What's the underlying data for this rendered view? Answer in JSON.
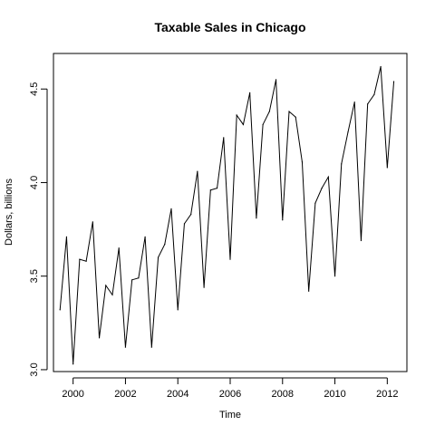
{
  "chart_data": {
    "type": "line",
    "title": "Taxable Sales in Chicago",
    "xlabel": "Time",
    "ylabel": "Dollars, billions",
    "xlim": [
      1999.25,
      2012.75
    ],
    "ylim": [
      2.99,
      4.69
    ],
    "xticks": [
      2000,
      2002,
      2004,
      2006,
      2008,
      2010,
      2012
    ],
    "xtick_labels": [
      "2000",
      "2002",
      "2004",
      "2006",
      "2008",
      "2010",
      "2012"
    ],
    "yticks": [
      3.0,
      3.5,
      4.0,
      4.5
    ],
    "ytick_labels": [
      "3.0",
      "3.5",
      "4.0",
      "4.5"
    ],
    "grid": false,
    "legend": "none",
    "x": [
      1999.5,
      1999.75,
      2000.0,
      2000.25,
      2000.5,
      2000.75,
      2001.0,
      2001.25,
      2001.5,
      2001.75,
      2002.0,
      2002.25,
      2002.5,
      2002.75,
      2003.0,
      2003.25,
      2003.5,
      2003.75,
      2004.0,
      2004.25,
      2004.5,
      2004.75,
      2005.0,
      2005.25,
      2005.5,
      2005.75,
      2006.0,
      2006.25,
      2006.5,
      2006.75,
      2007.0,
      2007.25,
      2007.5,
      2007.75,
      2008.0,
      2008.25,
      2008.5,
      2008.75,
      2009.0,
      2009.25,
      2009.5,
      2009.75,
      2010.0,
      2010.25,
      2010.5,
      2010.75,
      2011.0,
      2011.25,
      2011.5,
      2011.75,
      2012.0,
      2012.25
    ],
    "series": [
      {
        "values": [
          3.32,
          3.71,
          3.03,
          3.59,
          3.58,
          3.79,
          3.17,
          3.45,
          3.4,
          3.65,
          3.12,
          3.48,
          3.49,
          3.71,
          3.12,
          3.6,
          3.67,
          3.86,
          3.32,
          3.78,
          3.83,
          4.06,
          3.44,
          3.96,
          3.97,
          4.24,
          3.59,
          4.36,
          4.31,
          4.48,
          3.81,
          4.31,
          4.38,
          4.55,
          3.8,
          4.38,
          4.35,
          4.11,
          3.42,
          3.89,
          3.97,
          4.03,
          3.5,
          4.1,
          4.27,
          4.43,
          3.69,
          4.42,
          4.47,
          4.62,
          4.08,
          4.54
        ]
      }
    ],
    "colors": {
      "line": "#000000",
      "axes": "#000000",
      "background": "#ffffff"
    }
  }
}
